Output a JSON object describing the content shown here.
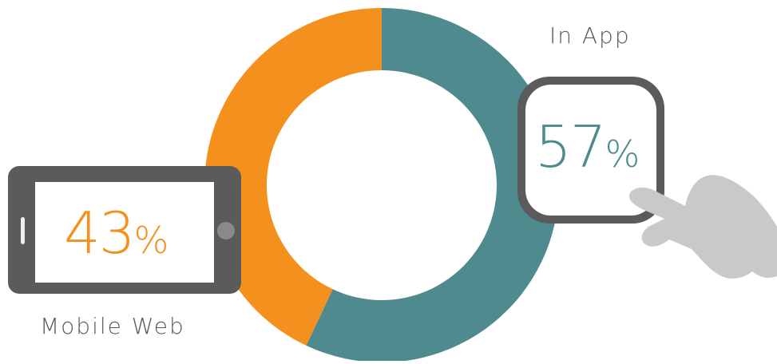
{
  "chart_data": {
    "type": "pie",
    "variant": "donut",
    "categories": [
      "In App",
      "Mobile Web"
    ],
    "values": [
      57,
      43
    ],
    "unit": "%",
    "colors": {
      "In App": "#4e8a8e",
      "Mobile Web": "#f4911e"
    }
  },
  "labels": {
    "in_app": {
      "name": "In App",
      "value": "57",
      "unit": "%"
    },
    "mobile_web": {
      "name": "Mobile Web",
      "value": "43",
      "unit": "%"
    }
  },
  "icons": {
    "phone": "smartphone-icon",
    "app_tile": "app-tile-icon",
    "hand": "pointing-hand-icon"
  },
  "colors": {
    "frame": "#5b5b5b",
    "hand": "#c9c9c9",
    "screen": "#ffffff"
  }
}
